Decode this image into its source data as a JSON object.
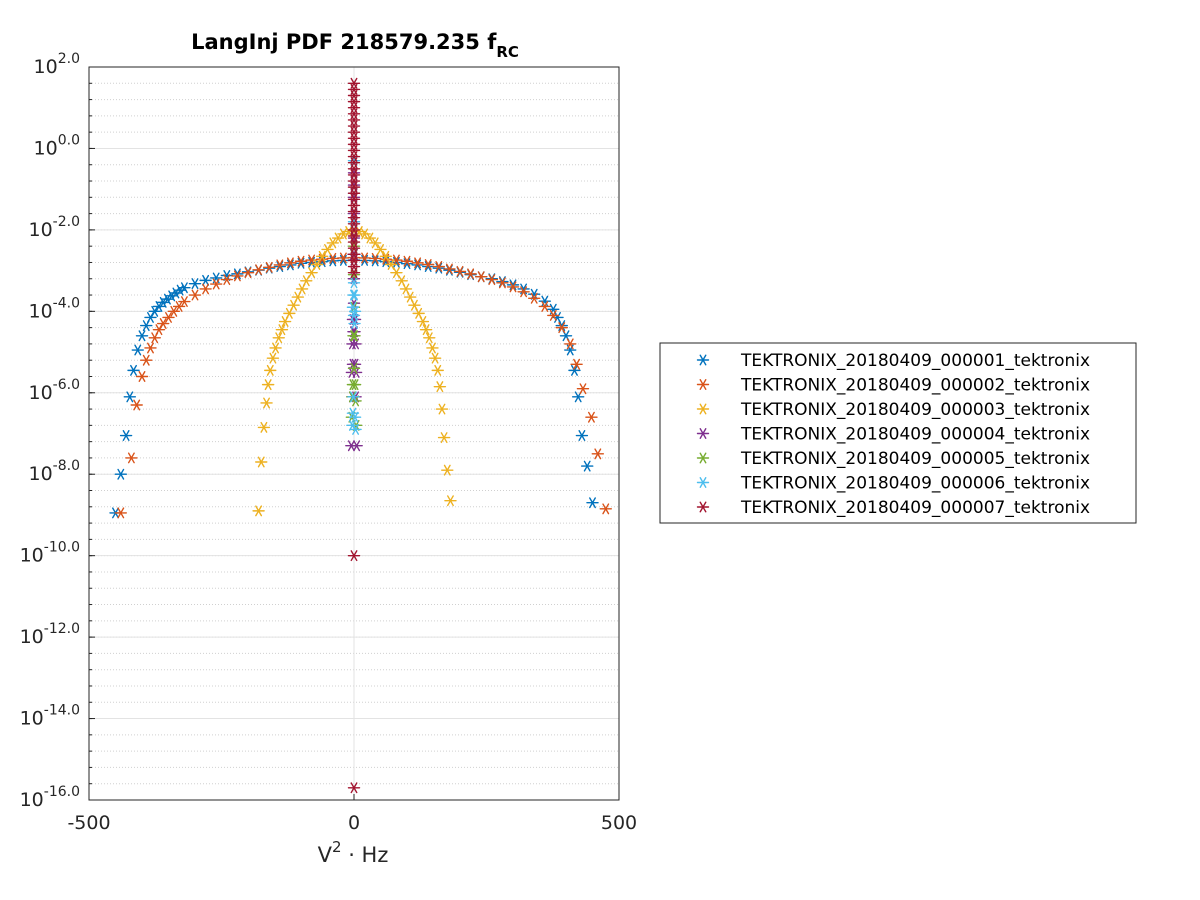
{
  "chart_data": {
    "type": "scatter",
    "title": "LangInj PDF 218579.235 f",
    "title_subscript": "RC",
    "xlabel_base": "V",
    "xlabel_sup": "2",
    "xlabel_rest": " · Hz",
    "ylabel": "",
    "xlim": [
      -500,
      500
    ],
    "ylim_log10": [
      -16,
      2
    ],
    "yscale": "log",
    "grid": true,
    "legend_position": "right",
    "marker": "asterisk",
    "x_ticks": [
      "-500",
      "0",
      "500"
    ],
    "y_ticks": [
      {
        "base": "10",
        "exp": "2.0",
        "log": 2
      },
      {
        "base": "10",
        "exp": "0.0",
        "log": 0
      },
      {
        "base": "10",
        "exp": "-2.0",
        "log": -2
      },
      {
        "base": "10",
        "exp": "-4.0",
        "log": -4
      },
      {
        "base": "10",
        "exp": "-6.0",
        "log": -6
      },
      {
        "base": "10",
        "exp": "-8.0",
        "log": -8
      },
      {
        "base": "10",
        "exp": "-10.0",
        "log": -10
      },
      {
        "base": "10",
        "exp": "-12.0",
        "log": -12
      },
      {
        "base": "10",
        "exp": "-14.0",
        "log": -14
      },
      {
        "base": "10",
        "exp": "-16.0",
        "log": -16
      }
    ],
    "series": [
      {
        "name": "TEKTRONIX_20180409_000001_tektronix",
        "color": "#0072BD",
        "x": [
          -450,
          -440,
          -430,
          -423,
          -416,
          -408,
          -400,
          -392,
          -384,
          -376,
          -368,
          -360,
          -352,
          -344,
          -336,
          -328,
          -320,
          -300,
          -280,
          -260,
          -240,
          -220,
          -200,
          -180,
          -160,
          -140,
          -120,
          -100,
          -80,
          -60,
          -40,
          -20,
          0,
          20,
          40,
          60,
          80,
          100,
          120,
          140,
          160,
          180,
          200,
          220,
          240,
          260,
          280,
          300,
          320,
          340,
          360,
          376,
          384,
          392,
          400,
          408,
          416,
          423,
          430,
          440,
          450
        ],
        "y_log10": [
          -8.95,
          -8.0,
          -7.05,
          -6.1,
          -5.45,
          -4.95,
          -4.6,
          -4.35,
          -4.15,
          -4.0,
          -3.88,
          -3.78,
          -3.7,
          -3.62,
          -3.55,
          -3.48,
          -3.42,
          -3.32,
          -3.24,
          -3.18,
          -3.12,
          -3.08,
          -3.03,
          -2.99,
          -2.94,
          -2.9,
          -2.86,
          -2.82,
          -2.8,
          -2.78,
          -2.76,
          -2.75,
          -2.74,
          -2.75,
          -2.76,
          -2.78,
          -2.8,
          -2.83,
          -2.86,
          -2.9,
          -2.94,
          -2.99,
          -3.04,
          -3.1,
          -3.15,
          -3.2,
          -3.27,
          -3.35,
          -3.45,
          -3.58,
          -3.75,
          -3.95,
          -4.15,
          -4.35,
          -4.6,
          -4.95,
          -5.45,
          -6.1,
          -7.05,
          -7.8,
          -8.7
        ]
      },
      {
        "name": "TEKTRONIX_20180409_000002_tektronix",
        "color": "#D95319",
        "x": [
          -440,
          -420,
          -410,
          -400,
          -392,
          -384,
          -376,
          -368,
          -360,
          -350,
          -340,
          -330,
          -320,
          -300,
          -280,
          -260,
          -240,
          -220,
          -200,
          -180,
          -160,
          -140,
          -120,
          -100,
          -80,
          -60,
          -40,
          -20,
          0,
          20,
          40,
          60,
          80,
          100,
          120,
          140,
          160,
          180,
          200,
          220,
          240,
          260,
          280,
          300,
          320,
          340,
          360,
          376,
          392,
          408,
          420,
          432,
          448,
          460,
          475
        ],
        "y_log10": [
          -8.95,
          -7.6,
          -6.3,
          -5.6,
          -5.2,
          -4.9,
          -4.65,
          -4.45,
          -4.3,
          -4.15,
          -4.0,
          -3.88,
          -3.76,
          -3.6,
          -3.45,
          -3.33,
          -3.22,
          -3.13,
          -3.05,
          -2.98,
          -2.92,
          -2.86,
          -2.81,
          -2.77,
          -2.74,
          -2.72,
          -2.7,
          -2.69,
          -2.68,
          -2.69,
          -2.7,
          -2.72,
          -2.74,
          -2.77,
          -2.81,
          -2.85,
          -2.9,
          -2.96,
          -3.02,
          -3.08,
          -3.15,
          -3.22,
          -3.3,
          -3.4,
          -3.52,
          -3.68,
          -3.88,
          -4.1,
          -4.4,
          -4.8,
          -5.3,
          -5.9,
          -6.6,
          -7.5,
          -8.85
        ]
      },
      {
        "name": "TEKTRONIX_20180409_000003_tektronix",
        "color": "#EDB120",
        "x": [
          -180,
          -175,
          -170,
          -165,
          -162,
          -158,
          -153,
          -148,
          -142,
          -136,
          -130,
          -122,
          -114,
          -106,
          -98,
          -90,
          -80,
          -70,
          -60,
          -50,
          -40,
          -30,
          -20,
          -10,
          0,
          10,
          20,
          30,
          40,
          50,
          60,
          70,
          80,
          90,
          98,
          106,
          114,
          122,
          130,
          136,
          142,
          148,
          153,
          158,
          162,
          166,
          170,
          176,
          182
        ],
        "y_log10": [
          -8.9,
          -7.7,
          -6.85,
          -6.25,
          -5.8,
          -5.45,
          -5.15,
          -4.9,
          -4.65,
          -4.45,
          -4.25,
          -4.05,
          -3.85,
          -3.65,
          -3.45,
          -3.25,
          -3.05,
          -2.85,
          -2.65,
          -2.48,
          -2.32,
          -2.2,
          -2.1,
          -2.04,
          -2.02,
          -2.04,
          -2.1,
          -2.2,
          -2.32,
          -2.48,
          -2.65,
          -2.85,
          -3.05,
          -3.25,
          -3.45,
          -3.65,
          -3.85,
          -4.05,
          -4.25,
          -4.45,
          -4.65,
          -4.9,
          -5.15,
          -5.45,
          -5.85,
          -6.4,
          -7.1,
          -7.9,
          -8.65
        ]
      },
      {
        "name": "TEKTRONIX_20180409_000004_tektronix",
        "color": "#7E2F8E",
        "x": [
          -5,
          -3,
          -2,
          -1,
          0,
          1,
          2,
          3,
          5,
          -4,
          4,
          -2,
          2,
          0,
          -1,
          1,
          0,
          -3,
          3,
          0,
          0,
          0,
          0
        ],
        "y_log10": [
          -7.3,
          -6.1,
          -5.3,
          -4.5,
          -3.8,
          -4.5,
          -5.3,
          -6.1,
          -7.3,
          -5.5,
          -5.5,
          -4.2,
          -4.2,
          -3.2,
          -2.6,
          -2.6,
          -2.2,
          -4.8,
          -4.8,
          -1.6,
          -1.2,
          -0.9,
          -0.6
        ]
      },
      {
        "name": "TEKTRONIX_20180409_000005_tektronix",
        "color": "#77AC30",
        "x": [
          -4,
          -2,
          0,
          2,
          4,
          -1,
          1,
          0,
          0,
          0,
          -3,
          3
        ],
        "y_log10": [
          -6.6,
          -5.8,
          -5.4,
          -5.8,
          -6.8,
          -4.6,
          -4.6,
          -3.9,
          -3.1,
          -2.4,
          -6.1,
          -6.2
        ]
      },
      {
        "name": "TEKTRONIX_20180409_000006_tektronix",
        "color": "#4DBEEE",
        "x": [
          -3,
          -2,
          -1,
          0,
          1,
          2,
          3,
          -1,
          1,
          0,
          0,
          0,
          0,
          -2,
          2,
          0
        ],
        "y_log10": [
          -6.8,
          -6.5,
          -6.1,
          -4.1,
          -4.3,
          -6.6,
          -6.9,
          -3.6,
          -3.6,
          -3.3,
          -2.6,
          -1.8,
          -1.1,
          -3.9,
          -4.0,
          -0.3
        ]
      },
      {
        "name": "TEKTRONIX_20180409_000007_tektronix",
        "color": "#A2142F",
        "x": [
          0,
          0,
          0,
          0,
          0,
          0,
          0,
          0,
          0,
          0,
          0,
          0,
          0,
          0,
          0,
          0,
          0,
          0,
          0,
          0,
          0,
          0,
          0,
          0,
          0,
          0,
          0,
          0,
          0,
          0,
          0,
          0,
          0,
          0
        ],
        "y_log10": [
          1.6,
          1.45,
          1.3,
          1.15,
          1.0,
          0.85,
          0.7,
          0.55,
          0.4,
          0.25,
          0.1,
          -0.05,
          -0.2,
          -0.35,
          -0.5,
          -0.65,
          -0.8,
          -0.95,
          -1.1,
          -1.25,
          -1.4,
          -1.55,
          -1.7,
          -1.85,
          -2.0,
          -2.15,
          -2.3,
          -2.45,
          -2.6,
          -2.75,
          -2.9,
          -3.05,
          -10.0,
          -15.7
        ]
      }
    ]
  }
}
